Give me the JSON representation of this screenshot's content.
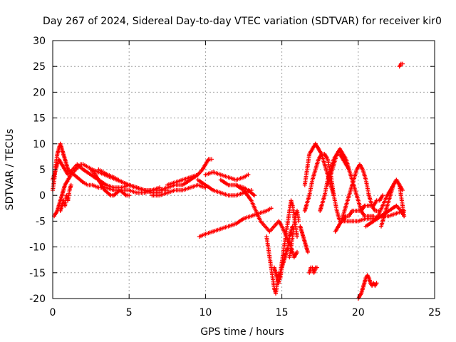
{
  "chart_data": {
    "type": "scatter",
    "title": "Day 267 of 2024, Sidereal Day-to-day VTEC variation (SDTVAR) for receiver kir0",
    "xlabel": "GPS time / hours",
    "ylabel": "SDTVAR / TECUs",
    "xlim": [
      0,
      25
    ],
    "ylim": [
      -20,
      30
    ],
    "grid": true,
    "marker": "plus",
    "color": "#ff0000",
    "xticks": [
      0,
      5,
      10,
      15,
      20,
      25
    ],
    "xtick_labels": [
      "0",
      "5",
      "10",
      "15",
      "20",
      "25"
    ],
    "yticks": [
      -20,
      -15,
      -10,
      -5,
      0,
      5,
      10,
      15,
      20,
      25,
      30
    ],
    "ytick_labels": [
      "-20",
      "-15",
      "-10",
      "-5",
      "0",
      "5",
      "10",
      "15",
      "20",
      "25",
      "30"
    ],
    "series": [
      {
        "name": "s1",
        "x": [
          0.0,
          0.1,
          0.2,
          0.3,
          0.4,
          0.5,
          0.6,
          0.7,
          0.8,
          0.9,
          1.0,
          1.2,
          1.4,
          1.6,
          1.8,
          2.0,
          2.3,
          2.6,
          3.0,
          3.5,
          4.0,
          4.5,
          5.0,
          5.5,
          6.0,
          6.5,
          7.0,
          7.5
        ],
        "y": [
          1,
          3,
          6,
          8,
          9,
          10,
          9,
          8,
          7,
          6,
          5,
          4.5,
          4,
          3.5,
          3,
          2.5,
          2,
          2,
          1.5,
          1.5,
          1,
          1,
          1,
          0.5,
          0.5,
          1,
          1,
          1
        ]
      },
      {
        "name": "s2",
        "x": [
          0.1,
          0.2,
          0.3,
          0.4,
          0.5,
          0.6,
          0.7,
          0.8,
          1.0,
          1.2,
          1.5,
          1.8,
          2.0,
          2.3,
          2.6,
          3.0,
          3.4,
          3.8,
          4.2,
          4.6,
          5.0,
          5.5,
          6.0
        ],
        "y": [
          -4,
          -3.5,
          -3,
          -2,
          -1,
          0,
          1,
          2,
          3,
          4,
          5,
          6,
          6,
          5.5,
          5,
          4.5,
          4,
          3.5,
          3,
          2.5,
          2,
          1.5,
          1
        ]
      },
      {
        "name": "s3",
        "x": [
          0.0,
          0.2,
          0.4,
          0.6,
          0.8,
          1.0,
          1.3,
          1.6,
          2.0,
          2.5,
          3.0,
          3.5,
          4.0,
          4.5,
          5.0,
          5.5,
          6.0,
          6.5,
          7.0
        ],
        "y": [
          3,
          5,
          7,
          6,
          5,
          4,
          5,
          6,
          5,
          4,
          3,
          2,
          1.5,
          1.5,
          2,
          1.5,
          1,
          1,
          1.5
        ]
      },
      {
        "name": "s4",
        "x": [
          0.5,
          0.6,
          0.7,
          0.8,
          0.9,
          1.0,
          1.1,
          1.2
        ],
        "y": [
          -3,
          -2,
          -1,
          -2,
          0,
          -1,
          1,
          2
        ]
      },
      {
        "name": "s5",
        "x": [
          2.5,
          2.8,
          3.0,
          3.2,
          3.4,
          3.6,
          3.8,
          4.0,
          4.2,
          4.4,
          4.6,
          4.8,
          5.0
        ],
        "y": [
          5,
          4,
          3,
          2,
          1,
          0.5,
          0,
          0,
          0.5,
          1,
          0.5,
          0,
          0
        ]
      },
      {
        "name": "s6",
        "x": [
          3.0,
          3.3,
          3.6,
          4.0,
          4.3,
          4.6,
          5.0,
          5.5,
          6.0,
          6.5,
          7.0
        ],
        "y": [
          5,
          4.5,
          4,
          3.5,
          3,
          2.5,
          2,
          1.5,
          1,
          0.5,
          0.5
        ]
      },
      {
        "name": "s7",
        "x": [
          6.5,
          7.0,
          7.5,
          8.0,
          8.5,
          9.0,
          9.5,
          10.0
        ],
        "y": [
          0,
          0,
          0.5,
          1,
          1,
          1.5,
          2,
          1.5
        ]
      },
      {
        "name": "s8",
        "x": [
          7.0,
          7.5,
          8.0,
          8.5,
          9.0,
          9.5,
          9.8,
          10.0,
          10.2,
          10.4
        ],
        "y": [
          1,
          1.5,
          2,
          2,
          3,
          4,
          5,
          6,
          7,
          7
        ]
      },
      {
        "name": "s9",
        "x": [
          7.5,
          8.0,
          8.5,
          9.0,
          9.5
        ],
        "y": [
          2,
          2.5,
          3,
          3.5,
          4
        ]
      },
      {
        "name": "s10",
        "x": [
          9.5,
          10.0,
          10.5,
          11.0,
          11.5,
          12.0,
          12.5,
          13.0
        ],
        "y": [
          3,
          2,
          1,
          0.5,
          0,
          0,
          0.5,
          1
        ]
      },
      {
        "name": "s11",
        "x": [
          10.0,
          10.5,
          11.0,
          11.5,
          12.0,
          12.5,
          12.8
        ],
        "y": [
          4,
          4.5,
          4,
          3.5,
          3,
          3.5,
          4
        ]
      },
      {
        "name": "s12",
        "x": [
          11.0,
          11.5,
          12.0,
          12.5,
          12.8,
          13.0,
          13.2
        ],
        "y": [
          3,
          2,
          2,
          1.5,
          1,
          0.5,
          0
        ]
      },
      {
        "name": "s13",
        "x": [
          9.6,
          10.0,
          10.5,
          11.0,
          11.5,
          12.0,
          12.5,
          13.0,
          13.5,
          14.0,
          14.3
        ],
        "y": [
          -8,
          -7.5,
          -7,
          -6.5,
          -6,
          -5.5,
          -4.5,
          -4,
          -3.5,
          -3,
          -2.5
        ]
      },
      {
        "name": "s14",
        "x": [
          12.0,
          12.5,
          13.0,
          13.3,
          13.6,
          13.9,
          14.2,
          14.5,
          14.8,
          15.0,
          15.3,
          15.6,
          15.8,
          16.0
        ],
        "y": [
          2,
          1,
          -1,
          -3,
          -5,
          -6,
          -7,
          -6,
          -5,
          -6,
          -8,
          -10,
          -12,
          -11
        ]
      },
      {
        "name": "s15",
        "x": [
          14.0,
          14.1,
          14.2,
          14.3,
          14.4,
          14.5,
          14.6,
          14.7,
          14.8,
          14.9,
          15.0,
          15.1,
          15.2,
          15.3,
          15.4,
          15.5,
          15.6,
          15.7
        ],
        "y": [
          -8,
          -10,
          -12,
          -14,
          -16,
          -18,
          -19,
          -17,
          -15,
          -16,
          -14,
          -13,
          -12,
          -11,
          -10,
          -8,
          -7,
          -6
        ]
      },
      {
        "name": "s16",
        "x": [
          14.5,
          14.6,
          14.7,
          14.8,
          14.9,
          15.0,
          15.1,
          15.2,
          15.3,
          15.4,
          15.5,
          15.6,
          15.7,
          15.8,
          15.9,
          16.0
        ],
        "y": [
          -14,
          -15,
          -16,
          -17,
          -15,
          -13,
          -11,
          -9,
          -7,
          -5,
          -3,
          -1,
          -2,
          -4,
          -6,
          -8
        ]
      },
      {
        "name": "s17",
        "x": [
          15.5,
          15.6,
          15.7,
          15.8,
          15.9,
          16.0,
          16.1
        ],
        "y": [
          -12,
          -10,
          -8,
          -6,
          -4,
          -3,
          -5
        ]
      },
      {
        "name": "s18",
        "x": [
          16.2,
          16.3,
          16.4,
          16.5,
          16.6,
          16.7
        ],
        "y": [
          -6,
          -7,
          -8,
          -9,
          -10,
          -11
        ]
      },
      {
        "name": "s19",
        "x": [
          16.8,
          16.9,
          17.0,
          17.1,
          17.2,
          17.3
        ],
        "y": [
          -15,
          -14,
          -14,
          -15,
          -14,
          -14
        ]
      },
      {
        "name": "s20",
        "x": [
          16.5,
          16.6,
          16.8,
          17.0,
          17.2,
          17.4,
          17.6,
          17.8,
          18.0,
          18.2,
          18.4,
          18.6,
          18.8,
          19.0,
          19.2,
          19.4,
          19.6,
          19.8,
          20.0,
          20.2,
          20.4,
          20.6,
          20.8,
          21.0,
          21.2,
          21.4,
          21.6
        ],
        "y": [
          -3,
          -2,
          0,
          3,
          5,
          7,
          8,
          8,
          7,
          4,
          0,
          -3,
          -5,
          -5,
          -4,
          -4,
          -3,
          -3,
          -3,
          -3,
          -2,
          -2,
          -2,
          -2,
          -1,
          -1,
          0
        ]
      },
      {
        "name": "s21",
        "x": [
          16.5,
          16.6,
          16.7,
          16.8,
          17.0,
          17.2,
          17.4,
          17.6,
          17.8,
          18.0,
          18.2,
          18.4
        ],
        "y": [
          2,
          4,
          6,
          8,
          9,
          10,
          9,
          8,
          6,
          4,
          2,
          0
        ]
      },
      {
        "name": "s22",
        "x": [
          17.5,
          17.6,
          17.8,
          18.0,
          18.2,
          18.4,
          18.6,
          18.8,
          19.0,
          19.2,
          19.4,
          19.6,
          19.8,
          20.0,
          20.2,
          20.4,
          20.6,
          20.8,
          21.0
        ],
        "y": [
          -3,
          -2,
          0,
          3,
          5,
          7,
          8,
          9,
          8,
          7,
          5,
          3,
          1,
          -1,
          -3,
          -4,
          -4,
          -4,
          -4
        ]
      },
      {
        "name": "s23",
        "x": [
          18.5,
          18.7,
          18.9,
          19.1,
          19.3,
          19.5,
          19.7,
          19.9,
          20.1,
          20.3,
          20.5,
          20.7,
          20.9,
          21.1,
          21.3
        ],
        "y": [
          -7,
          -6,
          -5,
          -3,
          -1,
          1,
          3,
          5,
          6,
          5,
          3,
          0,
          -2,
          -3,
          -3
        ]
      },
      {
        "name": "s24",
        "x": [
          18.0,
          18.2,
          18.4,
          18.6,
          18.8,
          19.0,
          19.2,
          19.4
        ],
        "y": [
          2,
          4,
          6,
          8,
          8,
          7,
          6,
          5
        ]
      },
      {
        "name": "s25",
        "x": [
          19.0,
          19.5,
          20.0,
          20.5,
          21.0,
          21.5,
          22.0,
          22.5,
          23.0
        ],
        "y": [
          -5,
          -5,
          -5,
          -4.5,
          -4.5,
          -4,
          -4,
          -3.5,
          -3
        ]
      },
      {
        "name": "s26",
        "x": [
          20.5,
          21.0,
          21.5,
          22.0,
          22.5,
          22.8,
          23.0
        ],
        "y": [
          -6,
          -5,
          -4,
          -3,
          -2,
          -3,
          -4
        ]
      },
      {
        "name": "s27",
        "x": [
          21.0,
          21.3,
          21.6,
          21.9,
          22.1,
          22.3,
          22.5,
          22.7,
          22.8,
          22.9,
          23.0
        ],
        "y": [
          -5,
          -4,
          -2,
          0,
          1,
          2,
          3,
          2,
          0,
          -2,
          -4
        ]
      },
      {
        "name": "s28",
        "x": [
          21.5,
          21.7,
          21.9,
          22.1,
          22.3,
          22.5,
          22.7,
          22.9
        ],
        "y": [
          -6,
          -4,
          -2,
          0,
          2,
          3,
          2,
          1
        ]
      },
      {
        "name": "s29",
        "x": [
          20.0,
          20.1,
          20.2,
          20.3,
          20.4,
          20.5,
          20.6,
          20.7,
          20.8,
          20.9,
          21.0,
          21.1,
          21.2
        ],
        "y": [
          -20,
          -19.5,
          -19,
          -18,
          -17,
          -16,
          -15.5,
          -16,
          -17,
          -17.5,
          -17,
          -17.5,
          -17
        ]
      },
      {
        "name": "s30",
        "x": [
          22.7,
          22.8,
          22.9
        ],
        "y": [
          25,
          25.5,
          25.5
        ]
      }
    ]
  }
}
